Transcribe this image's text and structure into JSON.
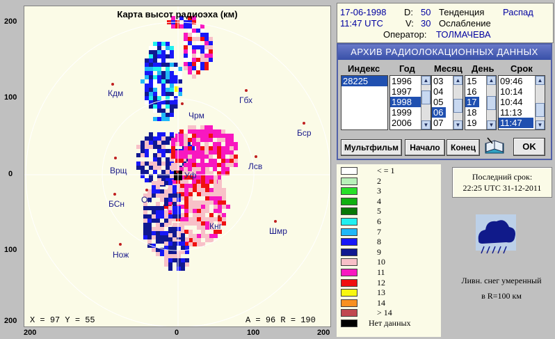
{
  "map": {
    "title": "Карта высот радиоэха (км)",
    "axis_ticks_left": [
      "200",
      "100",
      "0",
      "100",
      "200"
    ],
    "axis_ticks_bottom": [
      "200",
      "0",
      "100",
      "200"
    ],
    "cursor": {
      "x_label": "X =",
      "x": "97",
      "y_label": "Y =",
      "y": "55",
      "a_label": "A =",
      "a": "96",
      "r_label": "R =",
      "r": "190"
    },
    "stations": [
      "Кдм",
      "Гбх",
      "Чрм",
      "Бср",
      "Врщ",
      "Лсв",
      "Уф",
      "БСн",
      "Ок",
      "Кнг",
      "Шмр",
      "Нож"
    ]
  },
  "info": {
    "date": "17-06-1998",
    "d_label": "D:",
    "d_value": "50",
    "trend_label": "Тенденция",
    "trend_value": "Распад",
    "time": "11:47 UTC",
    "v_label": "V:",
    "v_value": "30",
    "weakening_label": "Ослабление",
    "operator_label": "Оператор:",
    "operator_value": "ТОЛМАЧЕВА"
  },
  "archive": {
    "title": "АРХИВ   РАДИОЛОКАЦИОННЫХ  ДАННЫХ",
    "headers": {
      "index": "Индекс",
      "year": "Год",
      "month": "Месяц",
      "day": "День",
      "term": "Срок"
    },
    "index_items": [
      "28225"
    ],
    "year_items": [
      "1996",
      "1997",
      "1998",
      "1999",
      "2006"
    ],
    "month_items": [
      "03",
      "04",
      "05",
      "06",
      "07"
    ],
    "day_items": [
      "15",
      "16",
      "17",
      "18",
      "19"
    ],
    "term_items": [
      "09:46",
      "10:14",
      "10:44",
      "11:13",
      "11:47"
    ],
    "selected": {
      "index": "28225",
      "year": "1998",
      "month": "06",
      "day": "17",
      "term": "11:47"
    },
    "buttons": {
      "multfilm": "Мультфильм",
      "start": "Начало",
      "end": "Конец",
      "ok": "OK"
    }
  },
  "legend": {
    "items": [
      {
        "label": "< = 1",
        "color": "#ffffff"
      },
      {
        "label": "2",
        "color": "#b8f0b8"
      },
      {
        "label": "3",
        "color": "#28e028"
      },
      {
        "label": "4",
        "color": "#10b010"
      },
      {
        "label": "5",
        "color": "#087808"
      },
      {
        "label": "6",
        "color": "#20f0f0"
      },
      {
        "label": "7",
        "color": "#20b8f8"
      },
      {
        "label": "8",
        "color": "#1818f8"
      },
      {
        "label": "9",
        "color": "#101890"
      },
      {
        "label": "10",
        "color": "#f8c0c8"
      },
      {
        "label": "11",
        "color": "#f818c0"
      },
      {
        "label": "12",
        "color": "#f01010"
      },
      {
        "label": "13",
        "color": "#f8f810"
      },
      {
        "label": "14",
        "color": "#f89020"
      },
      {
        "label": "> 14",
        "color": "#c04850"
      },
      {
        "label": "Нет данных",
        "color": "#000000"
      }
    ]
  },
  "last_term": {
    "label": "Последний срок:",
    "value": "22:25 UTC 31-12-2011"
  },
  "phenomenon": {
    "icon": "snow-shower-cloud-icon",
    "text": "Ливн. снег умеренный",
    "range": "в R=100 км"
  }
}
